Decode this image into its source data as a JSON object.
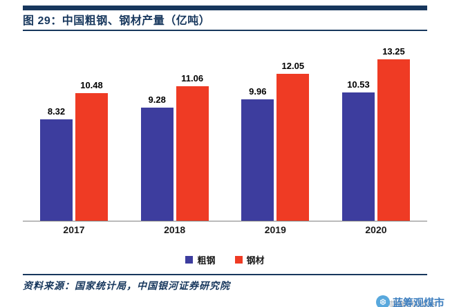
{
  "title": "图 29：中国粗钢、钢材产量（亿吨）",
  "chart_data": {
    "type": "bar",
    "title": "中国粗钢、钢材产量（亿吨）",
    "categories": [
      "2017",
      "2018",
      "2019",
      "2020"
    ],
    "series": [
      {
        "name": "粗钢",
        "color": "#3D3D9E",
        "values": [
          8.32,
          9.28,
          9.96,
          10.53
        ]
      },
      {
        "name": "钢材",
        "color": "#EF3B24",
        "values": [
          10.48,
          11.06,
          12.05,
          13.25
        ]
      }
    ],
    "data_labels": [
      "8.32",
      "10.48",
      "9.28",
      "11.06",
      "9.96",
      "12.05",
      "10.53",
      "13.25"
    ],
    "xlabel": "",
    "ylabel": "",
    "ylim": [
      0,
      14
    ],
    "grid": false,
    "y_axis_visible": false,
    "legend_position": "bottom"
  },
  "source_note": "资料来源：国家统计局，中国银河证券研究院",
  "watermark": {
    "text": "蓝筹观煤市",
    "logo": "雪球"
  },
  "colors": {
    "navy": "#17375D",
    "bar_blue": "#3D3D9E",
    "bar_red": "#EF3B24",
    "axis": "#7f7f7f"
  }
}
